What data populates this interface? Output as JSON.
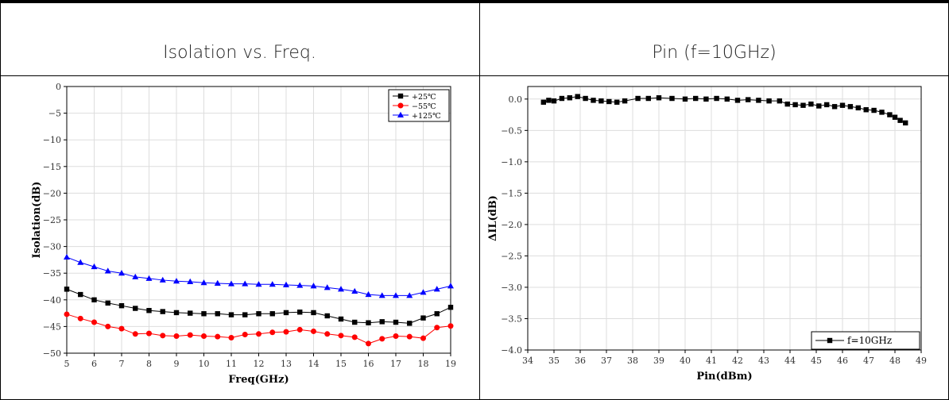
{
  "table": {
    "headers": [
      "Isolation vs. Freq.",
      "Pin (f=10GHz)"
    ]
  },
  "chart_data": [
    {
      "type": "line",
      "title": "",
      "xlabel": "Freq(GHz)",
      "ylabel": "Isolation(dB)",
      "xlim": [
        5,
        19
      ],
      "ylim": [
        -50,
        0
      ],
      "xticks": [
        5,
        6,
        7,
        8,
        9,
        10,
        11,
        12,
        13,
        14,
        15,
        16,
        17,
        18,
        19
      ],
      "yticks": [
        0,
        -5,
        -10,
        -15,
        -20,
        -25,
        -30,
        -35,
        -40,
        -45,
        -50
      ],
      "grid": true,
      "legend_position": "top-right",
      "series": [
        {
          "name": "+25℃",
          "color": "#000000",
          "marker": "square",
          "x": [
            5.0,
            5.5,
            6.0,
            6.5,
            7.0,
            7.5,
            8.0,
            8.5,
            9.0,
            9.5,
            10.0,
            10.5,
            11.0,
            11.5,
            12.0,
            12.5,
            13.0,
            13.5,
            14.0,
            14.5,
            15.0,
            15.5,
            16.0,
            16.5,
            17.0,
            17.5,
            18.0,
            18.5,
            19.0
          ],
          "y": [
            -38.0,
            -39.0,
            -40.0,
            -40.6,
            -41.1,
            -41.6,
            -42.0,
            -42.2,
            -42.4,
            -42.5,
            -42.6,
            -42.6,
            -42.8,
            -42.8,
            -42.6,
            -42.6,
            -42.4,
            -42.3,
            -42.4,
            -43.0,
            -43.6,
            -44.2,
            -44.3,
            -44.1,
            -44.2,
            -44.4,
            -43.4,
            -42.6,
            -41.4
          ]
        },
        {
          "name": "−55℃",
          "color": "#ff0000",
          "marker": "circle",
          "x": [
            5.0,
            5.5,
            6.0,
            6.5,
            7.0,
            7.5,
            8.0,
            8.5,
            9.0,
            9.5,
            10.0,
            10.5,
            11.0,
            11.5,
            12.0,
            12.5,
            13.0,
            13.5,
            14.0,
            14.5,
            15.0,
            15.5,
            16.0,
            16.5,
            17.0,
            17.5,
            18.0,
            18.5,
            19.0
          ],
          "y": [
            -42.7,
            -43.5,
            -44.2,
            -45.0,
            -45.4,
            -46.4,
            -46.3,
            -46.7,
            -46.8,
            -46.6,
            -46.8,
            -46.9,
            -47.1,
            -46.5,
            -46.4,
            -46.1,
            -46.0,
            -45.6,
            -45.9,
            -46.4,
            -46.7,
            -47.0,
            -48.2,
            -47.3,
            -46.8,
            -46.9,
            -47.2,
            -45.2,
            -44.9
          ]
        },
        {
          "name": "+125℃",
          "color": "#0000ff",
          "marker": "triangle",
          "x": [
            5.0,
            5.5,
            6.0,
            6.5,
            7.0,
            7.5,
            8.0,
            8.5,
            9.0,
            9.5,
            10.0,
            10.5,
            11.0,
            11.5,
            12.0,
            12.5,
            13.0,
            13.5,
            14.0,
            14.5,
            15.0,
            15.5,
            16.0,
            16.5,
            17.0,
            17.5,
            18.0,
            18.5,
            19.0
          ],
          "y": [
            -32.0,
            -33.0,
            -33.8,
            -34.6,
            -35.0,
            -35.7,
            -36.0,
            -36.3,
            -36.5,
            -36.6,
            -36.8,
            -36.9,
            -37.0,
            -37.0,
            -37.1,
            -37.1,
            -37.2,
            -37.3,
            -37.4,
            -37.7,
            -38.0,
            -38.4,
            -39.0,
            -39.2,
            -39.2,
            -39.2,
            -38.6,
            -38.0,
            -37.4
          ]
        }
      ]
    },
    {
      "type": "line",
      "title": "",
      "xlabel": "Pin(dBm)",
      "ylabel": "ΔIL(dB)",
      "xlim": [
        34,
        49
      ],
      "ylim": [
        -4.0,
        0.2
      ],
      "xticks": [
        34,
        35,
        36,
        37,
        38,
        39,
        40,
        41,
        42,
        43,
        44,
        45,
        46,
        47,
        48,
        49
      ],
      "yticks": [
        0.0,
        -0.5,
        -1.0,
        -1.5,
        -2.0,
        -2.5,
        -3.0,
        -3.5,
        -4.0
      ],
      "grid": true,
      "legend_position": "bottom-right",
      "series": [
        {
          "name": "f=10GHz",
          "color": "#000000",
          "marker": "square",
          "x": [
            34.6,
            34.8,
            35.0,
            35.3,
            35.6,
            35.9,
            36.2,
            36.5,
            36.8,
            37.1,
            37.4,
            37.7,
            38.2,
            38.6,
            39.0,
            39.5,
            40.0,
            40.4,
            40.8,
            41.2,
            41.6,
            42.0,
            42.4,
            42.8,
            43.2,
            43.6,
            43.9,
            44.2,
            44.5,
            44.8,
            45.1,
            45.4,
            45.7,
            46.0,
            46.3,
            46.6,
            46.9,
            47.2,
            47.5,
            47.8,
            48.0,
            48.2,
            48.4
          ],
          "y": [
            -0.05,
            -0.02,
            -0.03,
            0.01,
            0.02,
            0.04,
            0.01,
            -0.02,
            -0.03,
            -0.04,
            -0.05,
            -0.03,
            0.01,
            0.01,
            0.02,
            0.01,
            0.0,
            0.01,
            0.0,
            0.01,
            0.0,
            -0.02,
            -0.01,
            -0.02,
            -0.03,
            -0.03,
            -0.08,
            -0.09,
            -0.1,
            -0.08,
            -0.11,
            -0.09,
            -0.12,
            -0.1,
            -0.12,
            -0.14,
            -0.17,
            -0.18,
            -0.21,
            -0.25,
            -0.29,
            -0.34,
            -0.38
          ]
        }
      ]
    }
  ]
}
